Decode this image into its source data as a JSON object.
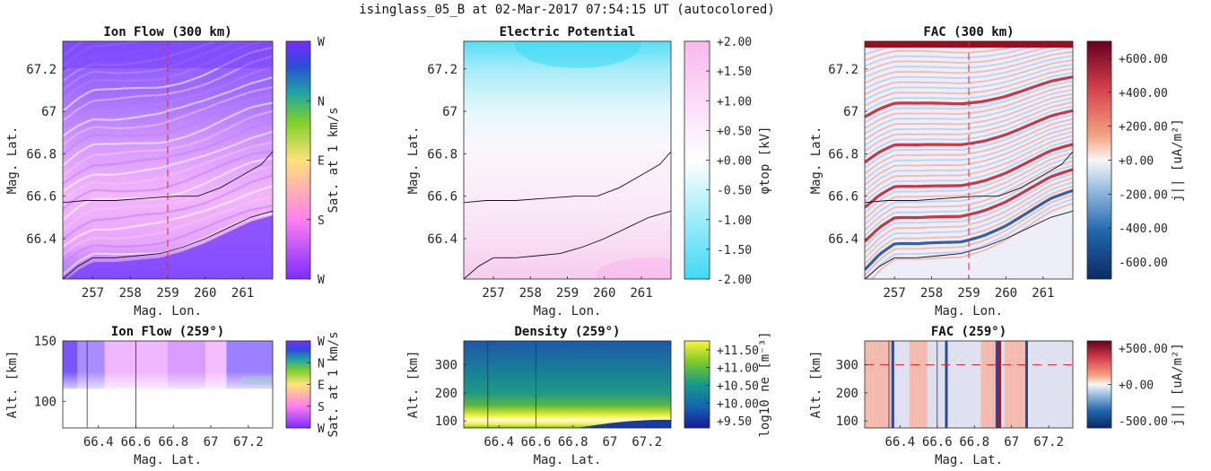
{
  "figure_title": "isinglass_05_B at 02-Mar-2017 07:54:15 UT (autocolored)",
  "colors": {
    "flow_dark": "#7b44ff",
    "flow_light": "#f0b8ff",
    "flow_pink": "#ff88ee",
    "marker_red": "#e8202a",
    "potential_cyan": "#3fd9f5",
    "potential_pink": "#f8b8ee",
    "density_blue": "#1a3aa0",
    "density_teal": "#1b8a88",
    "density_green": "#6abf2a",
    "density_yellow": "#f5f03a",
    "fac_red": "#b2182b",
    "fac_blue": "#2166ac"
  },
  "chart_data": [
    {
      "id": "ion-flow-300",
      "type": "heatmap",
      "title": "Ion Flow (300 km)",
      "xlabel": "Mag. Lon.",
      "ylabel": "Mag. Lat.",
      "xlim": [
        256.2,
        261.8
      ],
      "ylim": [
        66.21,
        67.33
      ],
      "xticks": [
        257,
        258,
        259,
        260,
        261
      ],
      "yticks": [
        66.4,
        66.6,
        66.8,
        67,
        67.2
      ],
      "ytick_labels": [
        "66.4",
        "66.6",
        "66.8",
        "67",
        "67.2"
      ],
      "colorbar": {
        "label": "Sat. at 1 km/s",
        "tick_labels": [
          "W",
          "S",
          "E",
          "N",
          "W"
        ],
        "colors": [
          "#7b2cff",
          "#ff7ef0",
          "#ffe27a",
          "#7fd02a",
          "#1fa7a0",
          "#2b4bd8",
          "#7b2cff"
        ]
      },
      "marker_lon": 259,
      "boundary_upper": {
        "x": [
          256.2,
          256.8,
          257.6,
          258.4,
          259.2,
          259.8,
          260.4,
          261.0,
          261.5,
          261.8
        ],
        "y": [
          66.57,
          66.58,
          66.58,
          66.59,
          66.6,
          66.6,
          66.64,
          66.7,
          66.75,
          66.81
        ]
      },
      "boundary_lower": {
        "x": [
          256.2,
          256.6,
          257.0,
          257.6,
          258.2,
          258.8,
          259.4,
          260.0,
          260.6,
          261.2,
          261.8
        ],
        "y": [
          66.21,
          66.27,
          66.31,
          66.31,
          66.32,
          66.33,
          66.36,
          66.4,
          66.45,
          66.5,
          66.53
        ]
      }
    },
    {
      "id": "electric-potential",
      "type": "heatmap",
      "title": "Electric Potential",
      "xlabel": "Mag. Lon.",
      "ylabel": "Mag. Lat.",
      "xlim": [
        256.2,
        261.8
      ],
      "ylim": [
        66.21,
        67.33
      ],
      "xticks": [
        257,
        258,
        259,
        260,
        261
      ],
      "yticks": [
        66.4,
        66.6,
        66.8,
        67,
        67.2
      ],
      "ytick_labels": [
        "66.4",
        "66.6",
        "66.8",
        "67",
        "67.2"
      ],
      "colorbar": {
        "label": "φtop [kV]",
        "range": [
          -2.0,
          2.0
        ],
        "ticks": [
          2.0,
          1.5,
          1.0,
          0.5,
          0.0,
          -0.5,
          -1.0,
          -1.5,
          -2.0
        ],
        "tick_labels": [
          "+2.00",
          "+1.50",
          "+1.00",
          "+0.50",
          "+0.00",
          "-0.50",
          "-1.00",
          "-1.50",
          "-2.00"
        ]
      },
      "boundary_upper": {
        "x": [
          256.2,
          256.8,
          257.6,
          258.4,
          259.2,
          259.8,
          260.4,
          261.0,
          261.5,
          261.8
        ],
        "y": [
          66.57,
          66.58,
          66.58,
          66.59,
          66.6,
          66.6,
          66.64,
          66.7,
          66.75,
          66.81
        ]
      },
      "boundary_lower": {
        "x": [
          256.2,
          256.6,
          257.0,
          257.6,
          258.2,
          258.8,
          259.4,
          260.0,
          260.6,
          261.2,
          261.8
        ],
        "y": [
          66.21,
          66.27,
          66.31,
          66.31,
          66.32,
          66.33,
          66.36,
          66.4,
          66.45,
          66.5,
          66.53
        ]
      }
    },
    {
      "id": "fac-300",
      "type": "heatmap",
      "title": "FAC (300 km)",
      "xlabel": "Mag. Lon.",
      "ylabel": "Mag. Lat.",
      "xlim": [
        256.2,
        261.8
      ],
      "ylim": [
        66.21,
        67.33
      ],
      "xticks": [
        257,
        258,
        259,
        260,
        261
      ],
      "yticks": [
        66.4,
        66.6,
        66.8,
        67,
        67.2
      ],
      "ytick_labels": [
        "66.4",
        "66.6",
        "66.8",
        "67",
        "67.2"
      ],
      "colorbar": {
        "label": "j|| [uA/m²]",
        "range": [
          -700,
          700
        ],
        "ticks": [
          600,
          400,
          200,
          0,
          -200,
          -400,
          -600
        ],
        "tick_labels": [
          "+600.00",
          "+400.00",
          "+200.00",
          "+0.00",
          "-200.00",
          "-400.00",
          "-600.00"
        ]
      },
      "marker_lon": 259,
      "boundary_upper": {
        "x": [
          256.2,
          256.8,
          257.6,
          258.4,
          259.2,
          259.8,
          260.4,
          261.0,
          261.5,
          261.8
        ],
        "y": [
          66.57,
          66.58,
          66.58,
          66.59,
          66.6,
          66.6,
          66.64,
          66.7,
          66.75,
          66.81
        ]
      },
      "boundary_lower": {
        "x": [
          256.2,
          256.6,
          257.0,
          257.6,
          258.2,
          258.8,
          259.4,
          260.0,
          260.6,
          261.2,
          261.8
        ],
        "y": [
          66.21,
          66.27,
          66.31,
          66.31,
          66.32,
          66.33,
          66.36,
          66.4,
          66.45,
          66.5,
          66.53
        ]
      }
    },
    {
      "id": "ion-flow-259",
      "type": "heatmap",
      "title": "Ion Flow (259°)",
      "xlabel": "Mag. Lat.",
      "ylabel": "Alt. [km]",
      "xlim": [
        66.21,
        67.33
      ],
      "ylim": [
        78,
        150
      ],
      "xticks": [
        66.4,
        66.6,
        66.8,
        67,
        67.2
      ],
      "xtick_labels": [
        "66.4",
        "66.6",
        "66.8",
        "67",
        "67.2"
      ],
      "yticks": [
        100,
        150
      ],
      "colorbar": {
        "label": "Sat. at 1 km/s",
        "tick_labels": [
          "W",
          "S",
          "E",
          "N",
          "W"
        ],
        "colors": [
          "#7b2cff",
          "#ff7ef0",
          "#ffe27a",
          "#7fd02a",
          "#1fa7a0",
          "#2b4bd8",
          "#7b2cff"
        ]
      },
      "vlines_lat": [
        66.34,
        66.6
      ]
    },
    {
      "id": "density-259",
      "type": "heatmap",
      "title": "Density (259°)",
      "xlabel": "Mag. Lat.",
      "ylabel": "Alt. [km]",
      "xlim": [
        66.21,
        67.33
      ],
      "ylim": [
        75,
        385
      ],
      "xticks": [
        66.4,
        66.6,
        66.8,
        67,
        67.2
      ],
      "xtick_labels": [
        "66.4",
        "66.6",
        "66.8",
        "67",
        "67.2"
      ],
      "yticks": [
        100,
        200,
        300
      ],
      "colorbar": {
        "label": "log10 ne [m⁻³]",
        "range": [
          9.3,
          11.75
        ],
        "ticks": [
          11.5,
          11.0,
          10.5,
          10.0,
          9.5
        ],
        "tick_labels": [
          "+11.50",
          "+11.00",
          "+10.50",
          "+10.00",
          "+9.50"
        ]
      },
      "vlines_lat": [
        66.34,
        66.6
      ]
    },
    {
      "id": "fac-259",
      "type": "heatmap",
      "title": "FAC (259°)",
      "xlabel": "Mag. Lat.",
      "ylabel": "Alt. [km]",
      "xlim": [
        66.21,
        67.33
      ],
      "ylim": [
        75,
        385
      ],
      "xticks": [
        66.4,
        66.6,
        66.8,
        67,
        67.2
      ],
      "xtick_labels": [
        "66.4",
        "66.6",
        "66.8",
        "67",
        "67.2"
      ],
      "yticks": [
        100,
        200,
        300
      ],
      "colorbar": {
        "label": "j|| [uA/m²]",
        "range": [
          -600,
          600
        ],
        "ticks": [
          500,
          0,
          -500
        ],
        "tick_labels": [
          "+500.00",
          "+0.00",
          "-500.00"
        ]
      },
      "marker_alt": 300,
      "vlines_lat": [
        66.34,
        66.6
      ]
    }
  ]
}
